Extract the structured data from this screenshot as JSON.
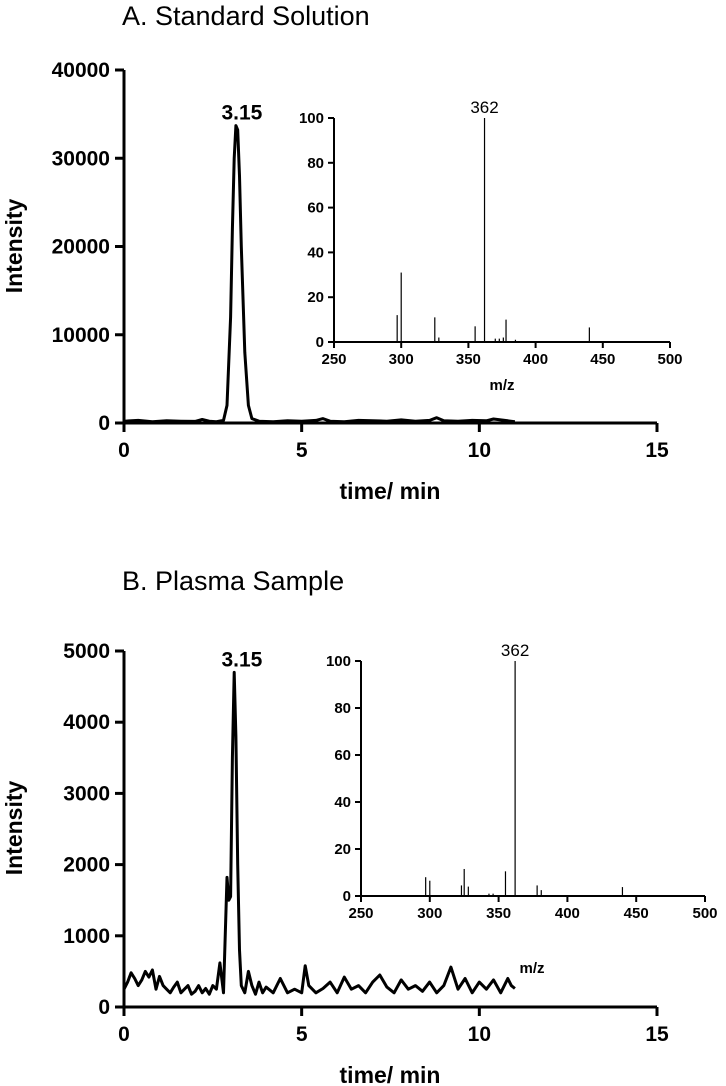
{
  "chart_data": [
    {
      "type": "line",
      "title": "A. Standard Solution",
      "xlabel": "time/ min",
      "ylabel": "Intensity",
      "xlim": [
        0,
        15
      ],
      "ylim": [
        0,
        40000
      ],
      "xticks": [
        0,
        5,
        10,
        15
      ],
      "yticks": [
        0,
        10000,
        20000,
        30000,
        40000
      ],
      "peak_label": "3.15",
      "peak_x": 3.15,
      "series": [
        {
          "x": [
            0.0,
            0.4,
            0.8,
            1.2,
            1.6,
            2.0,
            2.2,
            2.4,
            2.6,
            2.8,
            2.9,
            3.0,
            3.05,
            3.1,
            3.15,
            3.2,
            3.25,
            3.3,
            3.4,
            3.5,
            3.6,
            3.8,
            4.2,
            4.6,
            5.0,
            5.4,
            5.6,
            5.8,
            6.2,
            6.6,
            7.0,
            7.4,
            7.8,
            8.2,
            8.6,
            8.8,
            9.0,
            9.4,
            9.8,
            10.2,
            10.4,
            10.6,
            10.8,
            11.0
          ],
          "y": [
            200,
            300,
            150,
            250,
            200,
            180,
            400,
            200,
            150,
            300,
            2000,
            12000,
            22000,
            30000,
            33700,
            33200,
            28000,
            20000,
            8000,
            2000,
            500,
            200,
            150,
            250,
            200,
            300,
            500,
            200,
            150,
            300,
            250,
            200,
            350,
            200,
            300,
            600,
            250,
            200,
            300,
            250,
            450,
            350,
            250,
            150
          ]
        }
      ],
      "inset": {
        "type": "bar",
        "xlabel": "m/z",
        "xlim": [
          250,
          500
        ],
        "ylim": [
          0,
          100
        ],
        "xticks": [
          250,
          300,
          350,
          400,
          450,
          500
        ],
        "yticks": [
          0,
          20,
          40,
          60,
          80,
          100
        ],
        "annotation": "362",
        "x": [
          297,
          300,
          325,
          328,
          355,
          362,
          370,
          373,
          376,
          378,
          385,
          440
        ],
        "y": [
          12,
          31,
          11,
          2,
          7,
          100,
          1.5,
          1.5,
          2,
          10,
          1,
          6.5
        ]
      }
    },
    {
      "type": "line",
      "title": "B. Plasma Sample",
      "xlabel": "time/ min",
      "ylabel": "Intensity",
      "xlim": [
        0,
        15
      ],
      "ylim": [
        0,
        5000
      ],
      "xticks": [
        0,
        5,
        10,
        15
      ],
      "yticks": [
        0,
        1000,
        2000,
        3000,
        4000,
        5000
      ],
      "peak_label": "3.15",
      "peak_x": 3.15,
      "series": [
        {
          "x": [
            0.0,
            0.1,
            0.2,
            0.3,
            0.4,
            0.5,
            0.6,
            0.7,
            0.8,
            0.9,
            1.0,
            1.1,
            1.2,
            1.3,
            1.4,
            1.5,
            1.6,
            1.7,
            1.8,
            1.9,
            2.0,
            2.1,
            2.2,
            2.3,
            2.4,
            2.5,
            2.6,
            2.7,
            2.8,
            2.9,
            2.95,
            3.0,
            3.05,
            3.1,
            3.15,
            3.2,
            3.25,
            3.3,
            3.4,
            3.5,
            3.6,
            3.7,
            3.8,
            3.9,
            4.0,
            4.2,
            4.4,
            4.6,
            4.8,
            5.0,
            5.1,
            5.2,
            5.4,
            5.6,
            5.8,
            6.0,
            6.2,
            6.4,
            6.6,
            6.8,
            7.0,
            7.2,
            7.4,
            7.6,
            7.8,
            8.0,
            8.2,
            8.4,
            8.6,
            8.8,
            9.0,
            9.2,
            9.4,
            9.6,
            9.8,
            10.0,
            10.2,
            10.4,
            10.6,
            10.8,
            10.9,
            11.0
          ],
          "y": [
            250,
            350,
            480,
            400,
            300,
            380,
            500,
            420,
            520,
            250,
            430,
            300,
            250,
            200,
            280,
            350,
            200,
            250,
            300,
            180,
            220,
            300,
            200,
            260,
            180,
            300,
            250,
            620,
            200,
            1820,
            1500,
            1550,
            3500,
            4700,
            3800,
            2000,
            800,
            300,
            200,
            500,
            300,
            180,
            350,
            200,
            280,
            200,
            400,
            200,
            250,
            200,
            580,
            300,
            200,
            260,
            350,
            200,
            420,
            250,
            300,
            200,
            350,
            450,
            280,
            200,
            380,
            250,
            300,
            220,
            350,
            200,
            300,
            560,
            250,
            400,
            200,
            350,
            250,
            380,
            200,
            400,
            300,
            260
          ]
        }
      ],
      "inset": {
        "type": "bar",
        "xlabel": "m/z",
        "xlim": [
          250,
          500
        ],
        "ylim": [
          0,
          100
        ],
        "xticks": [
          250,
          300,
          350,
          400,
          450,
          500
        ],
        "yticks": [
          0,
          20,
          40,
          60,
          80,
          100
        ],
        "annotation": "362",
        "x": [
          297,
          300,
          323,
          325,
          328,
          343,
          346,
          355,
          362,
          378,
          381,
          440
        ],
        "y": [
          8,
          6.5,
          4.5,
          11.5,
          4,
          1,
          1,
          10.5,
          100,
          4.5,
          2.5,
          3.8
        ]
      }
    }
  ]
}
